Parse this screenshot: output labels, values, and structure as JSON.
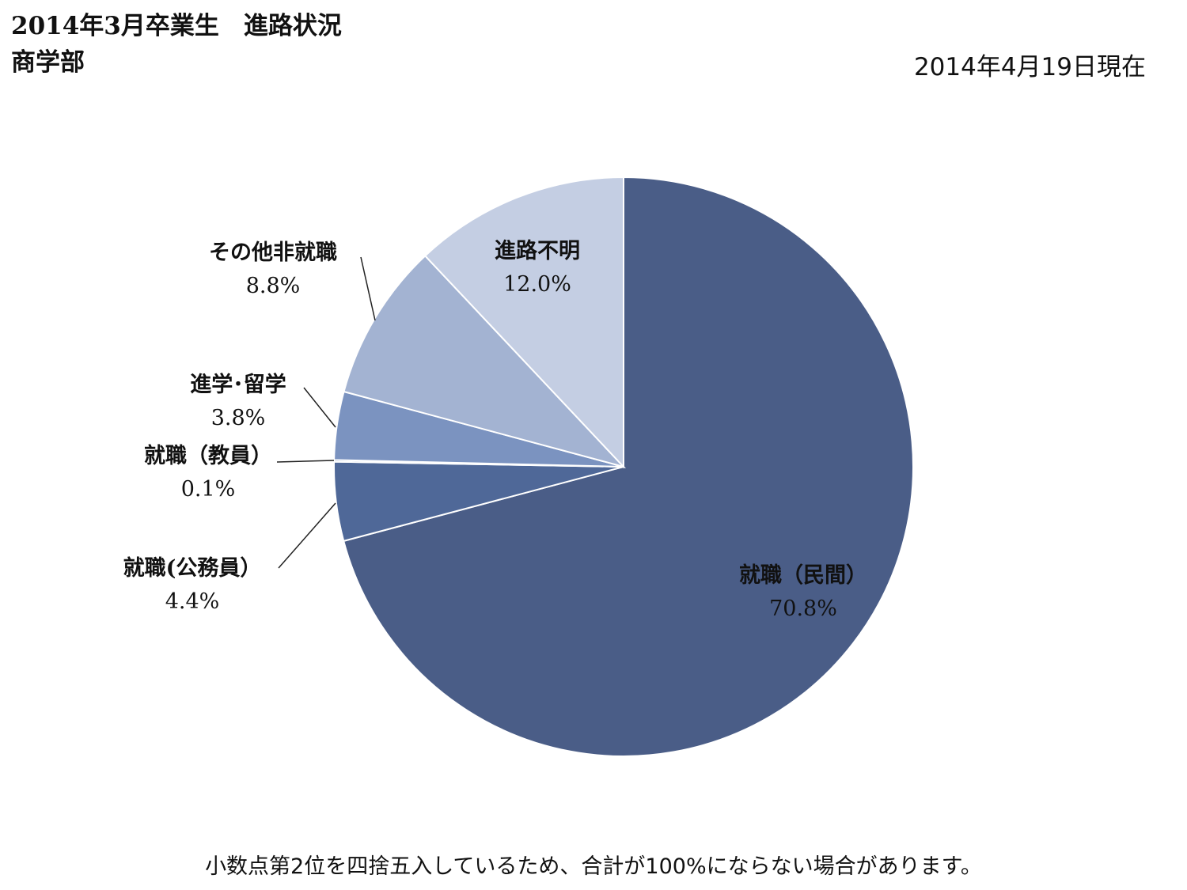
{
  "header": {
    "title": "2014年3月卒業生　進路状況",
    "subtitle": "商学部",
    "date": "2014年4月19日現在"
  },
  "footnote": "小数点第2位を四捨五入しているため、合計が100%にならない場合があります。",
  "chart_data": {
    "type": "pie",
    "title": "2014年3月卒業生　進路状況",
    "subtitle": "商学部",
    "start": "top",
    "direction": "clockwise",
    "slices": [
      {
        "name": "就職（民間）",
        "value": 70.8,
        "label": "70.8%",
        "color": "#4a5d87"
      },
      {
        "name": "就職(公務員）",
        "value": 4.4,
        "label": "4.4%",
        "color": "#4f6898"
      },
      {
        "name": "就職（教員）",
        "value": 0.1,
        "label": "0.1%",
        "color": "#5a71a3"
      },
      {
        "name": "進学･留学",
        "value": 3.8,
        "label": "3.8%",
        "color": "#7b93c0"
      },
      {
        "name": "その他非就職",
        "value": 8.8,
        "label": "8.8%",
        "color": "#a3b3d2"
      },
      {
        "name": "進路不明",
        "value": 12.0,
        "label": "12.0%",
        "color": "#c4cee3"
      }
    ]
  }
}
